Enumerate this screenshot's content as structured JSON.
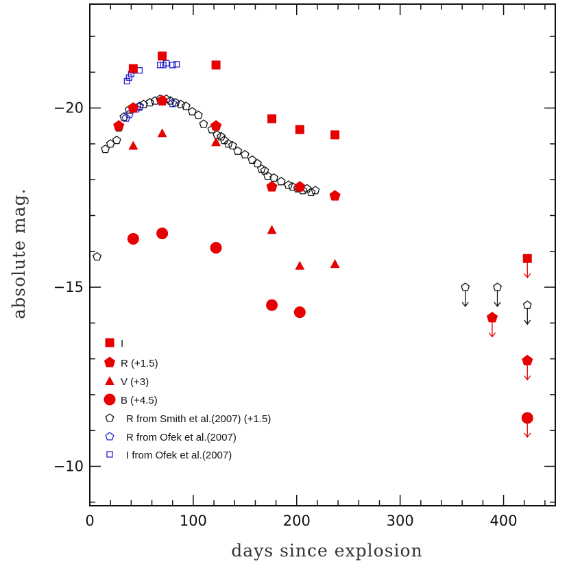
{
  "chart_data": {
    "type": "scatter",
    "title": "",
    "xlabel": "days since explosion",
    "ylabel": "absolute mag.",
    "xlim": [
      0,
      450
    ],
    "ylim": [
      -22.9,
      -8.9
    ],
    "y_inverted": true,
    "x_major_ticks": [
      0,
      100,
      200,
      300,
      400
    ],
    "y_major_ticks": [
      -20,
      -15,
      -10
    ],
    "x_tick_labels": [
      "0",
      "100",
      "200",
      "300",
      "400"
    ],
    "y_tick_labels": [
      "−20",
      "−15",
      "−10"
    ],
    "colors": {
      "red": "#e60000",
      "black": "#111111",
      "blue": "#2222cc"
    },
    "series": [
      {
        "name": "I",
        "marker": "square-filled",
        "color": "#e60000",
        "points": [
          [
            42,
            -21.1
          ],
          [
            70,
            -21.45
          ],
          [
            122,
            -21.2
          ],
          [
            176,
            -19.7
          ],
          [
            203,
            -19.4
          ],
          [
            237,
            -19.25
          ]
        ],
        "upper_limits": [
          [
            423,
            -15.8
          ]
        ]
      },
      {
        "name": "R (+1.5)",
        "marker": "pentagon-filled",
        "color": "#e60000",
        "points": [
          [
            28,
            -19.5
          ],
          [
            42,
            -20.0
          ],
          [
            70,
            -20.2
          ],
          [
            122,
            -19.5
          ],
          [
            176,
            -17.8
          ],
          [
            203,
            -17.8
          ],
          [
            237,
            -17.55
          ]
        ],
        "upper_limits": [
          [
            389,
            -14.15
          ],
          [
            423,
            -12.95
          ]
        ]
      },
      {
        "name": "V (+3)",
        "marker": "triangle-filled",
        "color": "#e60000",
        "points": [
          [
            42,
            -18.95
          ],
          [
            70,
            -19.3
          ],
          [
            122,
            -19.05
          ],
          [
            176,
            -16.6
          ],
          [
            203,
            -15.6
          ],
          [
            237,
            -15.65
          ]
        ]
      },
      {
        "name": "B (+4.5)",
        "marker": "circle-filled",
        "color": "#e60000",
        "points": [
          [
            42,
            -16.35
          ],
          [
            70,
            -16.5
          ],
          [
            122,
            -16.1
          ],
          [
            176,
            -14.5
          ],
          [
            203,
            -14.3
          ]
        ],
        "upper_limits": [
          [
            423,
            -11.35
          ]
        ]
      },
      {
        "name": "R from Smith et al.(2007) (+1.5)",
        "marker": "pentagon-open",
        "color": "#111111",
        "points": [
          [
            7,
            -15.85
          ],
          [
            15,
            -18.85
          ],
          [
            20,
            -19.0
          ],
          [
            26,
            -19.1
          ],
          [
            28,
            -19.45
          ],
          [
            33,
            -19.75
          ],
          [
            38,
            -19.95
          ],
          [
            43,
            -20.0
          ],
          [
            48,
            -20.05
          ],
          [
            52,
            -20.1
          ],
          [
            58,
            -20.15
          ],
          [
            63,
            -20.2
          ],
          [
            68,
            -20.25
          ],
          [
            74,
            -20.25
          ],
          [
            78,
            -20.2
          ],
          [
            83,
            -20.15
          ],
          [
            88,
            -20.1
          ],
          [
            93,
            -20.05
          ],
          [
            99,
            -19.9
          ],
          [
            105,
            -19.8
          ],
          [
            110,
            -19.55
          ],
          [
            118,
            -19.4
          ],
          [
            123,
            -19.25
          ],
          [
            127,
            -19.2
          ],
          [
            130,
            -19.1
          ],
          [
            134,
            -19.0
          ],
          [
            138,
            -18.95
          ],
          [
            143,
            -18.8
          ],
          [
            150,
            -18.7
          ],
          [
            157,
            -18.55
          ],
          [
            162,
            -18.45
          ],
          [
            166,
            -18.3
          ],
          [
            169,
            -18.25
          ],
          [
            172,
            -18.1
          ],
          [
            178,
            -18.05
          ],
          [
            185,
            -17.95
          ],
          [
            192,
            -17.85
          ],
          [
            196,
            -17.8
          ],
          [
            201,
            -17.75
          ],
          [
            206,
            -17.7
          ],
          [
            210,
            -17.75
          ],
          [
            214,
            -17.65
          ],
          [
            218,
            -17.7
          ]
        ],
        "upper_limits": [
          [
            363,
            -15.0
          ],
          [
            394,
            -15.0
          ],
          [
            423,
            -14.5
          ]
        ]
      },
      {
        "name": "R from Ofek et al.(2007)",
        "marker": "pentagon-open",
        "color": "#2222cc",
        "points": [
          [
            35,
            -19.72
          ],
          [
            38,
            -19.82
          ],
          [
            45,
            -19.98
          ],
          [
            48,
            -20.03
          ],
          [
            80,
            -20.13
          ]
        ]
      },
      {
        "name": "I from Ofek et al.(2007)",
        "marker": "square-open",
        "color": "#2222cc",
        "points": [
          [
            36,
            -20.75
          ],
          [
            38,
            -20.85
          ],
          [
            40,
            -20.95
          ],
          [
            42,
            -21.05
          ],
          [
            48,
            -21.05
          ],
          [
            68,
            -21.2
          ],
          [
            71,
            -21.2
          ],
          [
            74,
            -21.25
          ],
          [
            80,
            -21.2
          ],
          [
            84,
            -21.22
          ]
        ]
      }
    ]
  }
}
